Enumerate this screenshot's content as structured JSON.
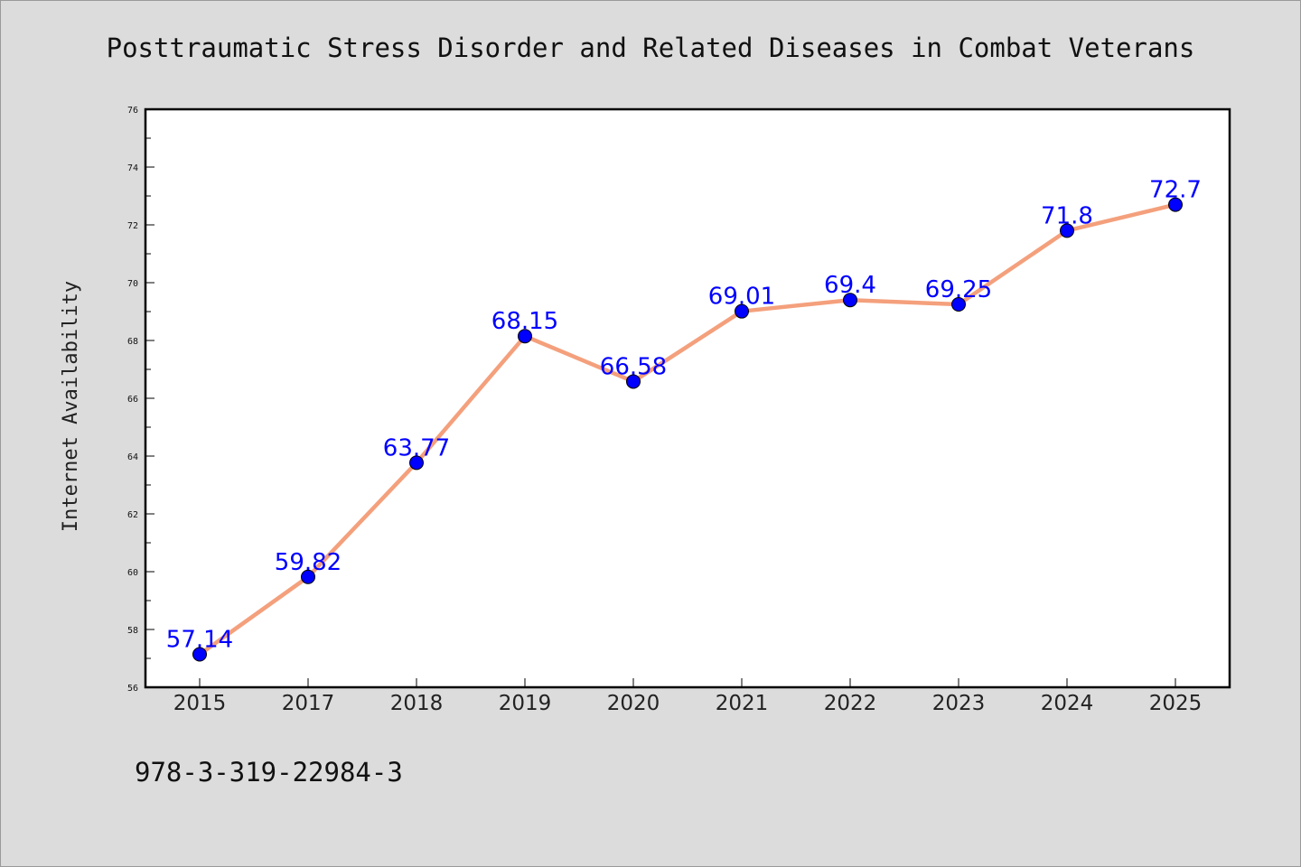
{
  "chart_data": {
    "type": "line",
    "title": "Posttraumatic Stress Disorder and Related Diseases in Combat Veterans",
    "xlabel": "",
    "ylabel": "Internet Availability",
    "categories": [
      "2015",
      "2017",
      "2018",
      "2019",
      "2020",
      "2021",
      "2022",
      "2023",
      "2024",
      "2025"
    ],
    "series": [
      {
        "values": [
          57.14,
          59.82,
          63.77,
          68.15,
          66.58,
          69.01,
          69.4,
          69.25,
          71.8,
          72.7
        ],
        "labels": [
          "57.14",
          "59.82",
          "63.77",
          "68.15",
          "66.58",
          "69.01",
          "69.4",
          "69.25",
          "71.8",
          "72.7"
        ],
        "line_color": "#f4a07c",
        "marker_color": "#0000ff"
      }
    ],
    "ylim": [
      56,
      76
    ],
    "yticks": [
      "56",
      "58",
      "60",
      "62",
      "64",
      "66",
      "68",
      "70",
      "72",
      "74",
      "76"
    ],
    "grid": false,
    "legend": "none"
  },
  "footer": {
    "text": "978-3-319-22984-3"
  },
  "colors": {
    "background": "#dcdcdc",
    "plot_background": "#ffffff",
    "axis": "#000000"
  }
}
